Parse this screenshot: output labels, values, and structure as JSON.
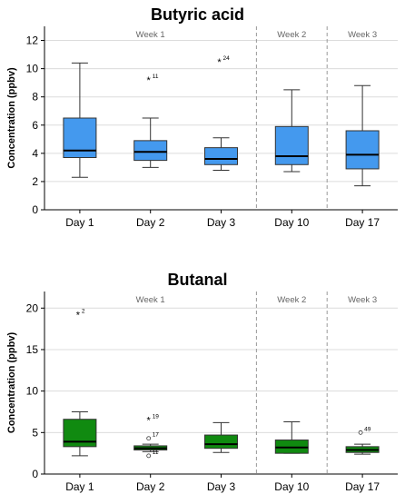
{
  "chart_data": [
    {
      "type": "box",
      "title": "Butyric acid",
      "ylabel": "Concentration (ppbv)",
      "xlabel": "",
      "ylim": [
        0,
        13
      ],
      "yticks": [
        0,
        2,
        4,
        6,
        8,
        10,
        12
      ],
      "grid": "horizontal",
      "box_color": "#4499ee",
      "week_labels": [
        {
          "label": "Week 1",
          "between": [
            0,
            2
          ]
        },
        {
          "label": "Week 2",
          "between": [
            3,
            3
          ]
        },
        {
          "label": "Week 3",
          "between": [
            4,
            4
          ]
        }
      ],
      "week_separators_after": [
        2,
        3
      ],
      "categories": [
        "Day 1",
        "Day 2",
        "Day 3",
        "Day 10",
        "Day 17"
      ],
      "boxes": [
        {
          "min": 2.3,
          "q1": 3.7,
          "median": 4.2,
          "q3": 6.5,
          "max": 10.4,
          "outliers": []
        },
        {
          "min": 3.0,
          "q1": 3.5,
          "median": 4.1,
          "q3": 4.9,
          "max": 6.5,
          "outliers": [
            {
              "value": 9.2,
              "label": "11",
              "marker": "*"
            }
          ]
        },
        {
          "min": 2.8,
          "q1": 3.2,
          "median": 3.6,
          "q3": 4.4,
          "max": 5.1,
          "outliers": [
            {
              "value": 10.5,
              "label": "24",
              "marker": "*"
            }
          ]
        },
        {
          "min": 2.7,
          "q1": 3.2,
          "median": 3.8,
          "q3": 5.9,
          "max": 8.5,
          "outliers": []
        },
        {
          "min": 1.7,
          "q1": 2.9,
          "median": 3.9,
          "q3": 5.6,
          "max": 8.8,
          "outliers": []
        }
      ]
    },
    {
      "type": "box",
      "title": "Butanal",
      "ylabel": "Concentration (ppbv)",
      "xlabel": "",
      "ylim": [
        0,
        22
      ],
      "yticks": [
        0,
        5,
        10,
        15,
        20
      ],
      "grid": "horizontal",
      "box_color": "#108a10",
      "week_labels": [
        {
          "label": "Week 1",
          "between": [
            0,
            2
          ]
        },
        {
          "label": "Week 2",
          "between": [
            3,
            3
          ]
        },
        {
          "label": "Week 3",
          "between": [
            4,
            4
          ]
        }
      ],
      "week_separators_after": [
        2,
        3
      ],
      "categories": [
        "Day 1",
        "Day 2",
        "Day 3",
        "Day 10",
        "Day 17"
      ],
      "boxes": [
        {
          "min": 2.2,
          "q1": 3.3,
          "median": 3.9,
          "q3": 6.6,
          "max": 7.5,
          "outliers": [
            {
              "value": 19.2,
              "label": "2",
              "marker": "*"
            }
          ]
        },
        {
          "min": 2.7,
          "q1": 2.9,
          "median": 3.1,
          "q3": 3.4,
          "max": 3.6,
          "outliers": [
            {
              "value": 6.5,
              "label": "19",
              "marker": "*"
            },
            {
              "value": 4.3,
              "label": "17",
              "marker": "o"
            },
            {
              "value": 2.2,
              "label": "11",
              "marker": "o"
            }
          ]
        },
        {
          "min": 2.6,
          "q1": 3.1,
          "median": 3.6,
          "q3": 4.7,
          "max": 6.2,
          "outliers": []
        },
        {
          "min": 2.5,
          "q1": 2.5,
          "median": 3.2,
          "q3": 4.1,
          "max": 6.3,
          "outliers": []
        },
        {
          "min": 2.4,
          "q1": 2.6,
          "median": 2.9,
          "q3": 3.3,
          "max": 3.6,
          "outliers": [
            {
              "value": 5.0,
              "label": "49",
              "marker": "o"
            }
          ]
        }
      ]
    }
  ]
}
